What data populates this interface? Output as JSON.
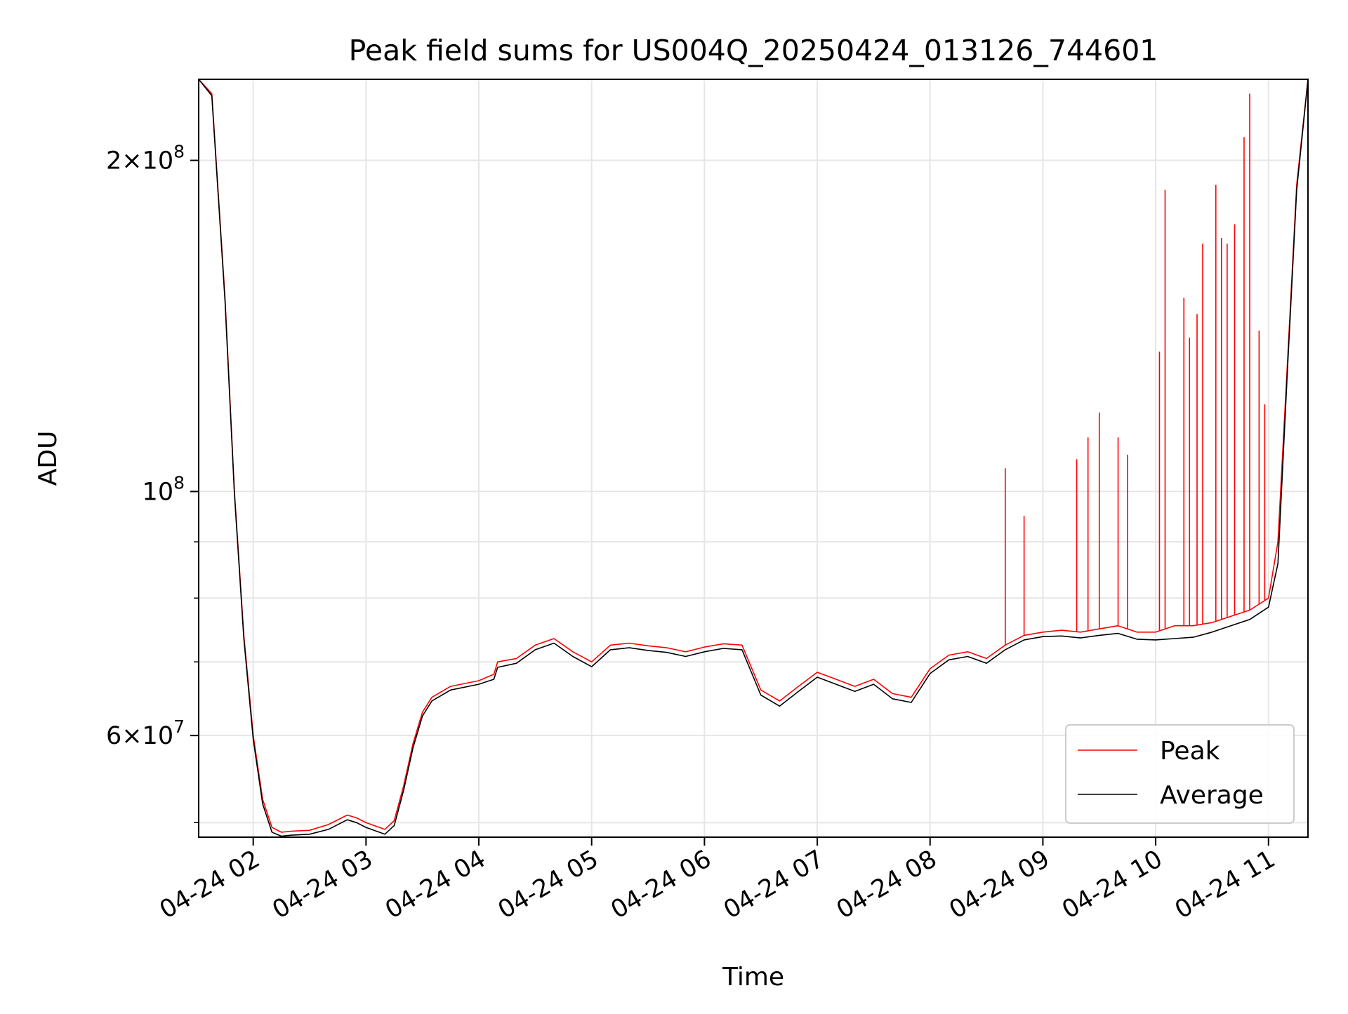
{
  "chart_data": {
    "type": "line",
    "title": "Peak field sums for US004Q_20250424_013126_744601",
    "xlabel": "Time",
    "ylabel": "ADU",
    "yscale": "log",
    "xlim": [
      "2025-04-24 01:31",
      "2025-04-24 11:21"
    ],
    "ylim": [
      48500000,
      237000000
    ],
    "grid": true,
    "legend_position": "lower-right",
    "x_ticks": [
      "2025-04-24 02:00",
      "2025-04-24 03:00",
      "2025-04-24 04:00",
      "2025-04-24 05:00",
      "2025-04-24 06:00",
      "2025-04-24 07:00",
      "2025-04-24 08:00",
      "2025-04-24 09:00",
      "2025-04-24 10:00",
      "2025-04-24 11:00"
    ],
    "x_tick_labels": [
      "04-24 02",
      "04-24 03",
      "04-24 04",
      "04-24 05",
      "04-24 06",
      "04-24 07",
      "04-24 08",
      "04-24 09",
      "04-24 10",
      "04-24 11"
    ],
    "y_major_ticks": [
      {
        "value": 60000000,
        "base": "6",
        "exp": "7",
        "times": true
      },
      {
        "value": 100000000,
        "base": "",
        "exp": "8",
        "times": false
      },
      {
        "value": 200000000,
        "base": "2",
        "exp": "8",
        "times": true
      }
    ],
    "y_minor_ticks": [
      50000000,
      70000000,
      80000000,
      90000000
    ],
    "series": [
      {
        "name": "Peak",
        "color": "#ff0000",
        "x": [
          "2025-04-24 01:31",
          "2025-04-24 01:38",
          "2025-04-24 01:45",
          "2025-04-24 01:50",
          "2025-04-24 01:55",
          "2025-04-24 02:00",
          "2025-04-24 02:05",
          "2025-04-24 02:10",
          "2025-04-24 02:15",
          "2025-04-24 02:20",
          "2025-04-24 02:30",
          "2025-04-24 02:40",
          "2025-04-24 02:50",
          "2025-04-24 02:55",
          "2025-04-24 03:00",
          "2025-04-24 03:10",
          "2025-04-24 03:15",
          "2025-04-24 03:20",
          "2025-04-24 03:25",
          "2025-04-24 03:30",
          "2025-04-24 03:35",
          "2025-04-24 03:45",
          "2025-04-24 04:00",
          "2025-04-24 04:08",
          "2025-04-24 04:10",
          "2025-04-24 04:20",
          "2025-04-24 04:30",
          "2025-04-24 04:40",
          "2025-04-24 04:50",
          "2025-04-24 05:00",
          "2025-04-24 05:10",
          "2025-04-24 05:20",
          "2025-04-24 05:30",
          "2025-04-24 05:40",
          "2025-04-24 05:50",
          "2025-04-24 06:00",
          "2025-04-24 06:10",
          "2025-04-24 06:20",
          "2025-04-24 06:30",
          "2025-04-24 06:40",
          "2025-04-24 06:50",
          "2025-04-24 07:00",
          "2025-04-24 07:10",
          "2025-04-24 07:20",
          "2025-04-24 07:30",
          "2025-04-24 07:40",
          "2025-04-24 07:50",
          "2025-04-24 08:00",
          "2025-04-24 08:10",
          "2025-04-24 08:20",
          "2025-04-24 08:30",
          "2025-04-24 08:40",
          "2025-04-24 08:50",
          "2025-04-24 09:00",
          "2025-04-24 09:10",
          "2025-04-24 09:20",
          "2025-04-24 09:30",
          "2025-04-24 09:40",
          "2025-04-24 09:50",
          "2025-04-24 10:00",
          "2025-04-24 10:10",
          "2025-04-24 10:20",
          "2025-04-24 10:30",
          "2025-04-24 10:40",
          "2025-04-24 10:50",
          "2025-04-24 11:00",
          "2025-04-24 11:05",
          "2025-04-24 11:10",
          "2025-04-24 11:15",
          "2025-04-24 11:21"
        ],
        "y": [
          237000000,
          230000000,
          150000000,
          100000000,
          74000000,
          60000000,
          52500000,
          49500000,
          49000000,
          49100000,
          49200000,
          49800000,
          50800000,
          50500000,
          50000000,
          49300000,
          50200000,
          54000000,
          59000000,
          63000000,
          65000000,
          66500000,
          67300000,
          68200000,
          70000000,
          70500000,
          72500000,
          73500000,
          71500000,
          70000000,
          72500000,
          72800000,
          72400000,
          72100000,
          71500000,
          72200000,
          72700000,
          72500000,
          66000000,
          64500000,
          66500000,
          68500000,
          67500000,
          66500000,
          67500000,
          65500000,
          65000000,
          69000000,
          71000000,
          71500000,
          70500000,
          72500000,
          74000000,
          74500000,
          74800000,
          74500000,
          75000000,
          75500000,
          74500000,
          74500000,
          75500000,
          75500000,
          76000000,
          77000000,
          78000000,
          80000000,
          90000000,
          130000000,
          190000000,
          237000000
        ]
      },
      {
        "name": "Average",
        "color": "#000000",
        "x": [
          "2025-04-24 01:31",
          "2025-04-24 01:38",
          "2025-04-24 01:45",
          "2025-04-24 01:50",
          "2025-04-24 01:55",
          "2025-04-24 02:00",
          "2025-04-24 02:05",
          "2025-04-24 02:10",
          "2025-04-24 02:15",
          "2025-04-24 02:20",
          "2025-04-24 02:30",
          "2025-04-24 02:40",
          "2025-04-24 02:50",
          "2025-04-24 02:55",
          "2025-04-24 03:00",
          "2025-04-24 03:10",
          "2025-04-24 03:15",
          "2025-04-24 03:20",
          "2025-04-24 03:25",
          "2025-04-24 03:30",
          "2025-04-24 03:35",
          "2025-04-24 03:45",
          "2025-04-24 04:00",
          "2025-04-24 04:08",
          "2025-04-24 04:10",
          "2025-04-24 04:20",
          "2025-04-24 04:30",
          "2025-04-24 04:40",
          "2025-04-24 04:50",
          "2025-04-24 05:00",
          "2025-04-24 05:10",
          "2025-04-24 05:20",
          "2025-04-24 05:30",
          "2025-04-24 05:40",
          "2025-04-24 05:50",
          "2025-04-24 06:00",
          "2025-04-24 06:10",
          "2025-04-24 06:20",
          "2025-04-24 06:30",
          "2025-04-24 06:40",
          "2025-04-24 06:50",
          "2025-04-24 07:00",
          "2025-04-24 07:10",
          "2025-04-24 07:20",
          "2025-04-24 07:30",
          "2025-04-24 07:40",
          "2025-04-24 07:50",
          "2025-04-24 08:00",
          "2025-04-24 08:10",
          "2025-04-24 08:20",
          "2025-04-24 08:30",
          "2025-04-24 08:40",
          "2025-04-24 08:50",
          "2025-04-24 09:00",
          "2025-04-24 09:10",
          "2025-04-24 09:20",
          "2025-04-24 09:30",
          "2025-04-24 09:40",
          "2025-04-24 09:50",
          "2025-04-24 10:00",
          "2025-04-24 10:10",
          "2025-04-24 10:20",
          "2025-04-24 10:30",
          "2025-04-24 10:40",
          "2025-04-24 10:50",
          "2025-04-24 11:00",
          "2025-04-24 11:05",
          "2025-04-24 11:10",
          "2025-04-24 11:15",
          "2025-04-24 11:21"
        ],
        "y": [
          237000000,
          229000000,
          149000000,
          99500000,
          73500000,
          59500000,
          52000000,
          49000000,
          48600000,
          48700000,
          48800000,
          49300000,
          50300000,
          50000000,
          49500000,
          48800000,
          49700000,
          53500000,
          58500000,
          62500000,
          64500000,
          66000000,
          66800000,
          67500000,
          69200000,
          69800000,
          71800000,
          72800000,
          70800000,
          69300000,
          71800000,
          72100000,
          71700000,
          71400000,
          70800000,
          71500000,
          72000000,
          71800000,
          65300000,
          63800000,
          65800000,
          67800000,
          66800000,
          65800000,
          66800000,
          64800000,
          64300000,
          68300000,
          70300000,
          70800000,
          69800000,
          71800000,
          73300000,
          73800000,
          73900000,
          73600000,
          74000000,
          74300000,
          73400000,
          73300000,
          73500000,
          73700000,
          74500000,
          75500000,
          76500000,
          78500000,
          86000000,
          128000000,
          188000000,
          237000000
        ]
      }
    ],
    "peak_spikes": [
      {
        "x": "2025-04-24 08:40",
        "y": 105000000
      },
      {
        "x": "2025-04-24 08:50",
        "y": 95000000
      },
      {
        "x": "2025-04-24 09:18",
        "y": 107000000
      },
      {
        "x": "2025-04-24 09:24",
        "y": 112000000
      },
      {
        "x": "2025-04-24 09:30",
        "y": 118000000
      },
      {
        "x": "2025-04-24 09:40",
        "y": 112000000
      },
      {
        "x": "2025-04-24 09:45",
        "y": 108000000
      },
      {
        "x": "2025-04-24 10:02",
        "y": 134000000
      },
      {
        "x": "2025-04-24 10:05",
        "y": 188000000
      },
      {
        "x": "2025-04-24 10:15",
        "y": 150000000
      },
      {
        "x": "2025-04-24 10:18",
        "y": 138000000
      },
      {
        "x": "2025-04-24 10:22",
        "y": 145000000
      },
      {
        "x": "2025-04-24 10:25",
        "y": 168000000
      },
      {
        "x": "2025-04-24 10:32",
        "y": 190000000
      },
      {
        "x": "2025-04-24 10:35",
        "y": 170000000
      },
      {
        "x": "2025-04-24 10:38",
        "y": 168000000
      },
      {
        "x": "2025-04-24 10:42",
        "y": 175000000
      },
      {
        "x": "2025-04-24 10:47",
        "y": 210000000
      },
      {
        "x": "2025-04-24 10:50",
        "y": 230000000
      },
      {
        "x": "2025-04-24 10:55",
        "y": 140000000
      },
      {
        "x": "2025-04-24 10:58",
        "y": 120000000
      }
    ],
    "legend": [
      "Peak",
      "Average"
    ]
  }
}
